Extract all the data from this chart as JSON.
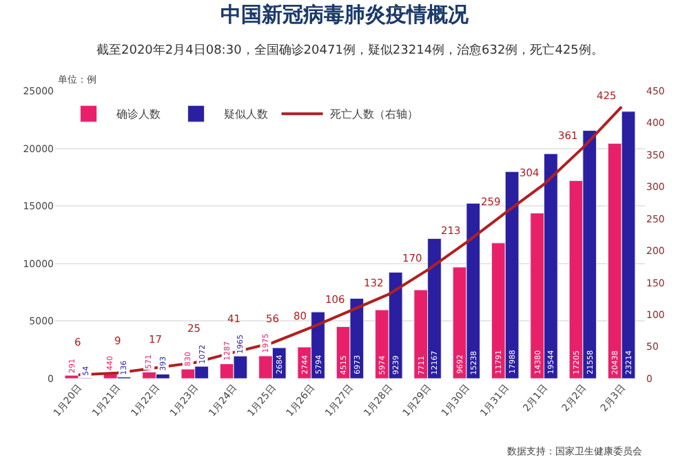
{
  "chart_data": {
    "type": "bar",
    "title": "中国新冠病毒肺炎疫情概况",
    "subtitle": "截至2020年2月4日08:30，全国确诊20471例，疑似23214例，治愈632例，死亡425例。",
    "ylabel": "单位：例",
    "categories": [
      "1月20日",
      "1月21日",
      "1月22日",
      "1月23日",
      "1月24日",
      "1月25日",
      "1月26日",
      "1月27日",
      "1月28日",
      "1月29日",
      "1月30日",
      "1月31日",
      "2月1日",
      "2月2日",
      "2月3日"
    ],
    "series": [
      {
        "name": "确诊人数",
        "color": "#e8206a",
        "values": [
          291,
          440,
          571,
          830,
          1287,
          1975,
          2744,
          4515,
          5974,
          7711,
          9692,
          11791,
          14380,
          17205,
          20438
        ]
      },
      {
        "name": "疑似人数",
        "color": "#2a1fa0",
        "values": [
          54,
          136,
          393,
          1072,
          1965,
          2684,
          5794,
          6973,
          9239,
          12167,
          15238,
          17988,
          19544,
          21558,
          23214
        ]
      },
      {
        "name": "死亡人数（右轴）",
        "type": "line",
        "axis": "y2",
        "color": "#b02020",
        "values": [
          6,
          9,
          17,
          25,
          41,
          56,
          80,
          106,
          132,
          170,
          213,
          259,
          304,
          361,
          425
        ]
      }
    ],
    "ylim": [
      0,
      25000
    ],
    "yticks": [
      0,
      5000,
      10000,
      15000,
      20000,
      25000
    ],
    "y2lim": [
      0,
      450
    ],
    "y2ticks": [
      0,
      50,
      100,
      150,
      200,
      250,
      300,
      350,
      400,
      450
    ],
    "grid": "y",
    "legend": "top left",
    "data_labels": true,
    "marker": "none",
    "line_style": "solid",
    "annotations": [
      "数据支持：国家卫生健康委员会"
    ]
  }
}
